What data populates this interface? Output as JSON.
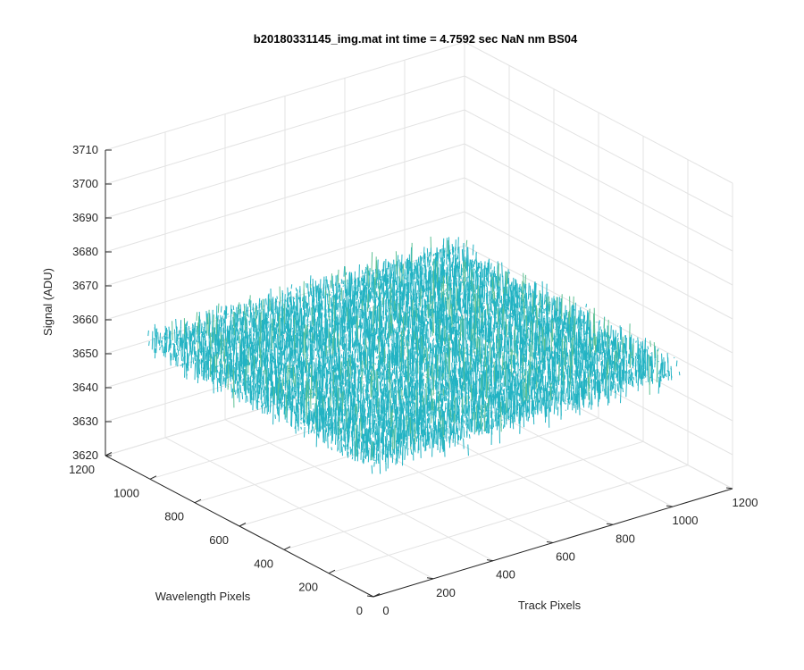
{
  "chart_data": {
    "type": "surface3d",
    "title": "b20180331145_img.mat int time = 4.7592 sec  NaN nm BS04",
    "xlabel": "Track Pixels",
    "ylabel": "Wavelength Pixels",
    "zlabel": "Signal (ADU)",
    "xlim": [
      0,
      1200
    ],
    "ylim": [
      0,
      1200
    ],
    "zlim": [
      3620,
      3710
    ],
    "x_ticks": [
      "0",
      "200",
      "400",
      "600",
      "800",
      "1000",
      "1200"
    ],
    "y_ticks": [
      "0",
      "200",
      "400",
      "600",
      "800",
      "1000",
      "1200"
    ],
    "z_ticks": [
      "3620",
      "3630",
      "3640",
      "3650",
      "3660",
      "3670",
      "3680",
      "3690",
      "3700",
      "3710"
    ],
    "data_extent": {
      "x": [
        0,
        1024
      ],
      "y": [
        0,
        1024
      ]
    },
    "signal_mean": 3660,
    "signal_min": 3625,
    "signal_max": 3705,
    "grid": true,
    "colormap": [
      "#0072bd",
      "#1f9bd0",
      "#22b3c3",
      "#5cc193",
      "#a8c060",
      "#e8c23a"
    ]
  }
}
